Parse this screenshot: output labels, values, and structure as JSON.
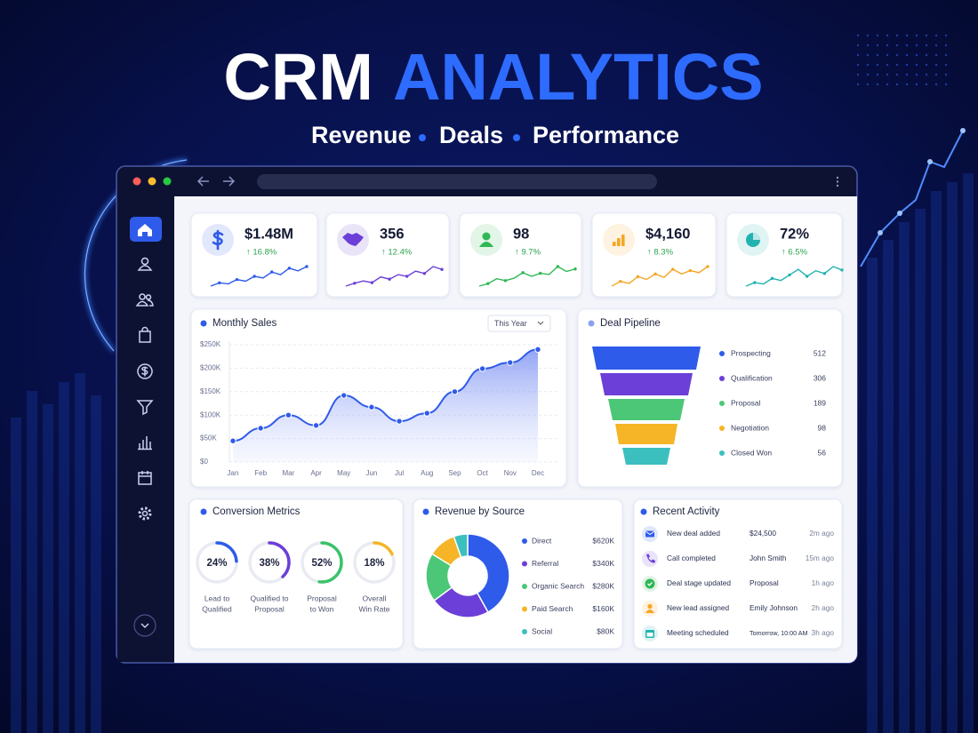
{
  "header": {
    "title_white": "CRM",
    "title_blue": "ANALYTICS",
    "subtitle": [
      "Revenue",
      "Deals",
      "Performance"
    ]
  },
  "kpis": [
    {
      "value": "$1.48M",
      "change": "↑ 16.8%",
      "color": "#2f5bea",
      "sparkline": [
        3,
        3.6,
        3.4,
        4.2,
        3.9,
        4.8,
        4.5,
        5.6,
        5.1,
        6.3,
        5.8,
        6.6
      ]
    },
    {
      "value": "356",
      "change": "↑ 12.4%",
      "color": "#6b3fd8",
      "sparkline": [
        3,
        3.5,
        3.9,
        3.6,
        4.6,
        4.2,
        5,
        4.7,
        5.6,
        5.2,
        6.4,
        5.9
      ]
    },
    {
      "value": "98",
      "change": "↑ 9.7%",
      "color": "#2fb855",
      "sparkline": [
        3,
        3.4,
        4.2,
        3.9,
        4.3,
        5.2,
        4.6,
        5.1,
        4.9,
        6.2,
        5.4,
        5.8
      ]
    },
    {
      "value": "$4,160",
      "change": "↑ 8.3%",
      "color": "#f5a623",
      "sparkline": [
        3,
        3.7,
        3.4,
        4.4,
        4,
        4.8,
        4.3,
        5.5,
        4.8,
        5.3,
        5,
        5.9
      ]
    },
    {
      "value": "72%",
      "change": "↑ 6.5%",
      "color": "#21b3b0",
      "sparkline": [
        3,
        3.5,
        3.3,
        4.1,
        3.8,
        4.6,
        5.4,
        4.4,
        5.2,
        4.8,
        5.8,
        5.3
      ]
    }
  ],
  "chart_data": [
    {
      "type": "line",
      "title": "Monthly Sales",
      "filter": "This Year",
      "categories": [
        "Jan",
        "Feb",
        "Mar",
        "Apr",
        "May",
        "Jun",
        "Jul",
        "Aug",
        "Sep",
        "Oct",
        "Nov",
        "Dec"
      ],
      "values": [
        45000,
        72000,
        100000,
        78000,
        142000,
        117000,
        87000,
        104000,
        150000,
        199000,
        212000,
        240000
      ],
      "color": "#2f5bea",
      "ylim": [
        0,
        250000
      ],
      "yticks": [
        {
          "value": 0,
          "label": "$0"
        },
        {
          "value": 50000,
          "label": "$50K"
        },
        {
          "value": 100000,
          "label": "$100K"
        },
        {
          "value": 150000,
          "label": "$150K"
        },
        {
          "value": 200000,
          "label": "$200K"
        },
        {
          "value": 250000,
          "label": "$250K"
        }
      ],
      "grid": true
    },
    {
      "type": "funnel",
      "title": "Deal Pipeline",
      "categories": [
        "Prospecting",
        "Qualification",
        "Proposal",
        "Negotiation",
        "Closed Won"
      ],
      "values": [
        512,
        306,
        189,
        98,
        56
      ],
      "colors": [
        "#2f5bea",
        "#6b3fd8",
        "#4cc777",
        "#f5b526",
        "#3cbfbf"
      ]
    },
    {
      "type": "ring",
      "title": "Conversion Metrics",
      "categories": [
        [
          "Lead to",
          "Qualified"
        ],
        [
          "Qualified to",
          "Proposal"
        ],
        [
          "Proposal",
          "to Won"
        ],
        [
          "Overall",
          "Win Rate"
        ]
      ],
      "values": [
        24,
        38,
        52,
        18
      ],
      "value_labels": [
        "24%",
        "38%",
        "52%",
        "18%"
      ],
      "ylim": [
        0,
        100
      ],
      "colors": [
        "#2f5bea",
        "#6b3fd8",
        "#3cc26a",
        "#f5b526"
      ]
    },
    {
      "type": "pie",
      "title": "Revenue by Source",
      "donut": true,
      "categories": [
        "Direct",
        "Referral",
        "Organic Search",
        "Paid Search",
        "Social"
      ],
      "values": [
        620000,
        340000,
        280000,
        160000,
        80000
      ],
      "value_labels": [
        "$620K",
        "$340K",
        "$280K",
        "$160K",
        "$80K"
      ],
      "colors": [
        "#2f5bea",
        "#6b3fd8",
        "#4cc777",
        "#f5b526",
        "#3cbfbf"
      ]
    }
  ],
  "recent_activity": {
    "title": "Recent Activity",
    "items": [
      {
        "event": "New deal added",
        "detail": "$24,500",
        "time": "2m ago",
        "color": "#2f5bea"
      },
      {
        "event": "Call completed",
        "detail": "John Smith",
        "time": "15m ago",
        "color": "#6b3fd8"
      },
      {
        "event": "Deal stage updated",
        "detail": "Proposal",
        "time": "1h ago",
        "color": "#2fb855"
      },
      {
        "event": "New lead assigned",
        "detail": "Emily Johnson",
        "time": "2h ago",
        "color": "#f5a623"
      },
      {
        "event": "Meeting scheduled",
        "detail": "Tomorrow, 10:00 AM",
        "time": "3h ago",
        "color": "#21b3b0"
      }
    ]
  }
}
